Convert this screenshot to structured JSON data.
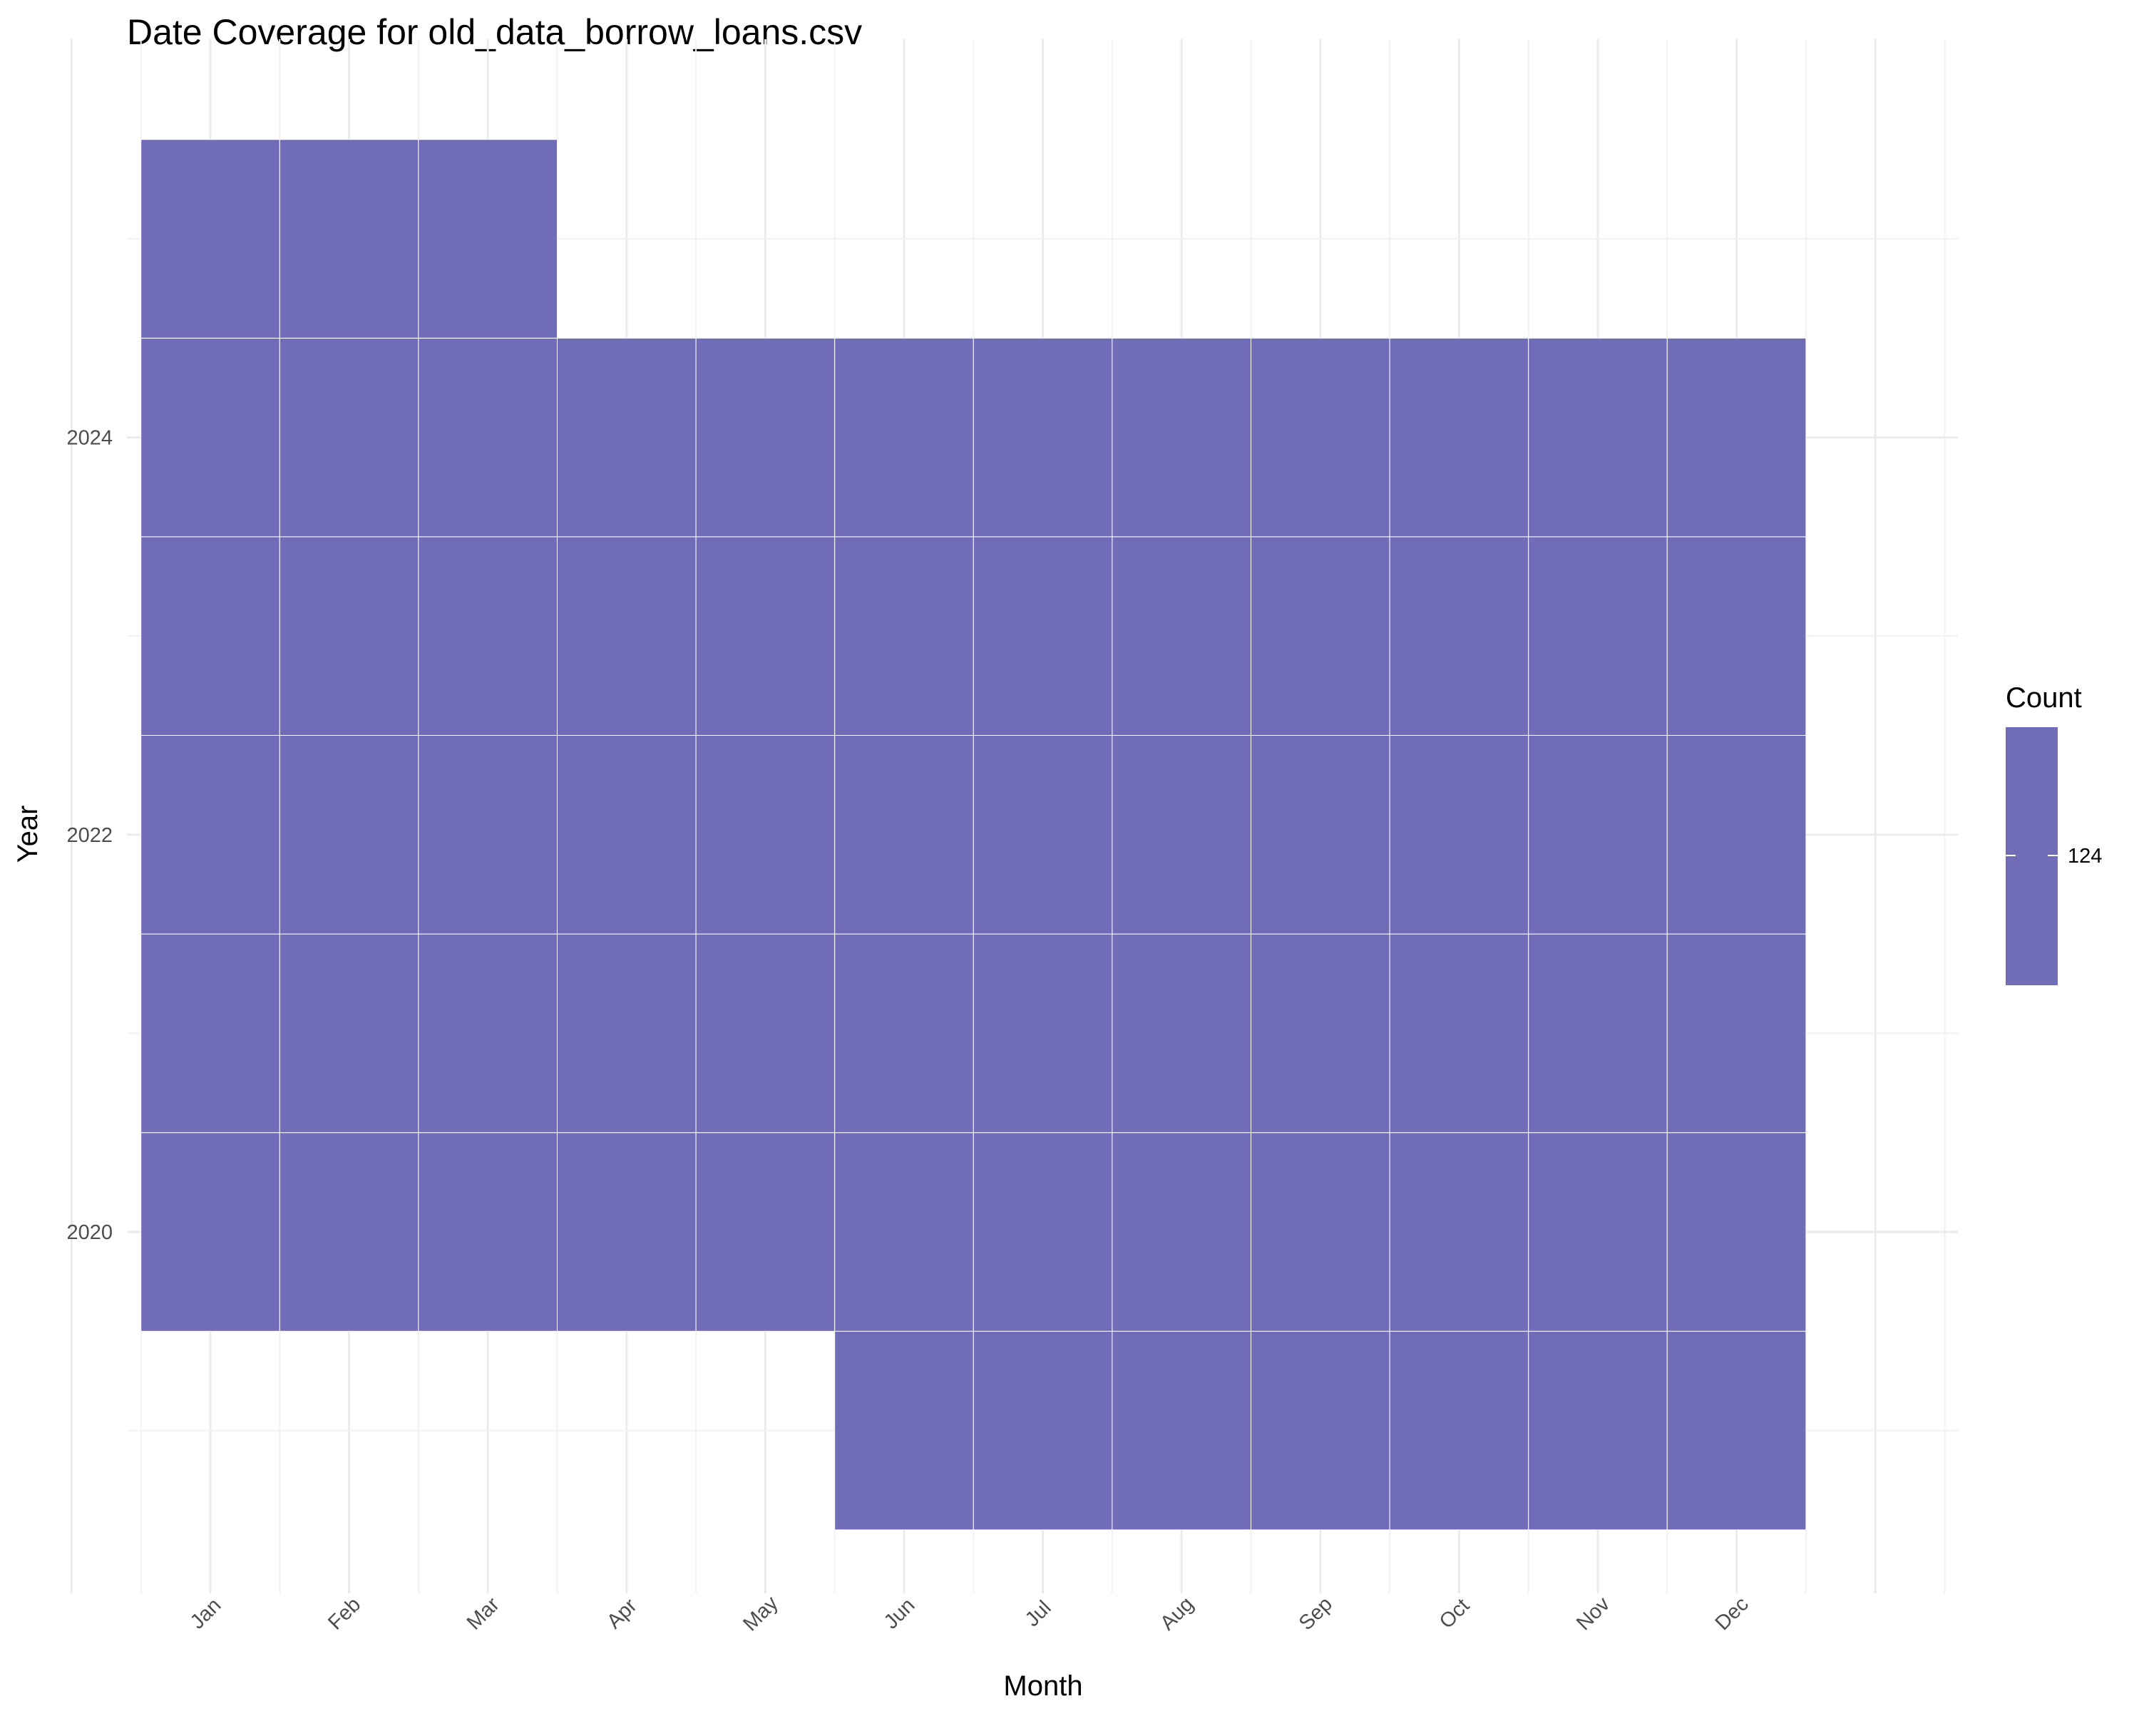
{
  "chart_data": {
    "type": "heatmap",
    "title": "Date Coverage for old_data_borrow_loans.csv",
    "xlabel": "Month",
    "ylabel": "Year",
    "categories": [
      "Jan",
      "Feb",
      "Mar",
      "Apr",
      "May",
      "Jun",
      "Jul",
      "Aug",
      "Sep",
      "Oct",
      "Nov",
      "Dec"
    ],
    "y_ticks": [
      2020,
      2022,
      2024
    ],
    "ylim": [
      2018.5,
      2025.5
    ],
    "legend": {
      "title": "Count",
      "labels": [
        "124"
      ],
      "position": "right"
    },
    "fill_color": "#706cb8",
    "grid": true,
    "cells": [
      {
        "year": 2019,
        "months": [
          "Jun",
          "Jul",
          "Aug",
          "Sep",
          "Oct",
          "Nov",
          "Dec"
        ],
        "count": 124
      },
      {
        "year": 2020,
        "months": [
          "Jan",
          "Feb",
          "Mar",
          "Apr",
          "May",
          "Jun",
          "Jul",
          "Aug",
          "Sep",
          "Oct",
          "Nov",
          "Dec"
        ],
        "count": 124
      },
      {
        "year": 2021,
        "months": [
          "Jan",
          "Feb",
          "Mar",
          "Apr",
          "May",
          "Jun",
          "Jul",
          "Aug",
          "Sep",
          "Oct",
          "Nov",
          "Dec"
        ],
        "count": 124
      },
      {
        "year": 2022,
        "months": [
          "Jan",
          "Feb",
          "Mar",
          "Apr",
          "May",
          "Jun",
          "Jul",
          "Aug",
          "Sep",
          "Oct",
          "Nov",
          "Dec"
        ],
        "count": 124
      },
      {
        "year": 2023,
        "months": [
          "Jan",
          "Feb",
          "Mar",
          "Apr",
          "May",
          "Jun",
          "Jul",
          "Aug",
          "Sep",
          "Oct",
          "Nov",
          "Dec"
        ],
        "count": 124
      },
      {
        "year": 2024,
        "months": [
          "Jan",
          "Feb",
          "Mar",
          "Apr",
          "May",
          "Jun",
          "Jul",
          "Aug",
          "Sep",
          "Oct",
          "Nov",
          "Dec"
        ],
        "count": 124
      },
      {
        "year": 2025,
        "months": [
          "Jan",
          "Feb",
          "Mar"
        ],
        "count": 124
      }
    ]
  }
}
